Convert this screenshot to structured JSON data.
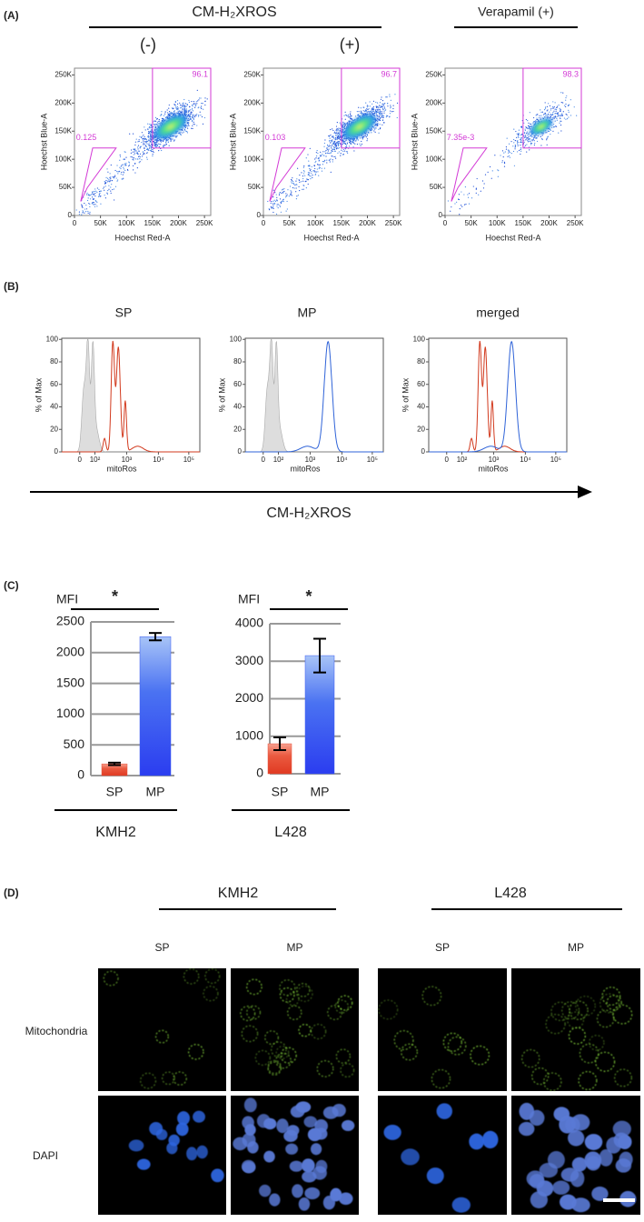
{
  "panel_a": {
    "label": "(A)",
    "treatment": "CM-H₂XROS",
    "verapamil": "Verapamil (+)",
    "conditions": [
      "(-)",
      "(+)"
    ],
    "x_axis_label": "Hoechst Red-A",
    "y_axis_label": "Hoechst Blue-A",
    "ticks": [
      "0",
      "50K",
      "100K",
      "150K",
      "200K",
      "250K"
    ],
    "plots": [
      {
        "mp_gate": "96.1",
        "sp_gate": "0.125"
      },
      {
        "mp_gate": "96.7",
        "sp_gate": "0.103"
      },
      {
        "mp_gate": "98.3",
        "sp_gate": "7.35e-3"
      }
    ]
  },
  "panel_b": {
    "label": "(B)",
    "titles": [
      "SP",
      "MP",
      "merged"
    ],
    "y_axis_label": "% of Max",
    "x_axis_label": "mitoRos",
    "yticks": [
      "0",
      "20",
      "40",
      "60",
      "80",
      "100"
    ],
    "xticks": [
      "0",
      "10²",
      "10³",
      "10⁴",
      "10⁵"
    ],
    "arrow_label": "CM-H₂XROS"
  },
  "panel_c": {
    "label": "(C)"
  },
  "chart_data": [
    {
      "type": "bar",
      "y_label": "MFI",
      "significance": "*",
      "group_label": "KMH2",
      "categories": [
        "SP",
        "MP"
      ],
      "values": [
        190,
        2260
      ],
      "errors": [
        20,
        60
      ],
      "colors": [
        "#e8533c",
        "#3d5cf2"
      ],
      "ylim": [
        0,
        2500
      ],
      "yticks": [
        0,
        500,
        1000,
        1500,
        2000,
        2500
      ],
      "grid": true
    },
    {
      "type": "bar",
      "y_label": "MFI",
      "significance": "*",
      "group_label": "L428",
      "categories": [
        "SP",
        "MP"
      ],
      "values": [
        800,
        3150
      ],
      "errors": [
        170,
        450
      ],
      "colors": [
        "#e8533c",
        "#3d5cf2"
      ],
      "ylim": [
        0,
        4000
      ],
      "yticks": [
        0,
        1000,
        2000,
        3000,
        4000
      ],
      "grid": true
    }
  ],
  "panel_d": {
    "label": "(D)",
    "groups": [
      "KMH2",
      "L428"
    ],
    "columns": [
      "SP",
      "MP",
      "SP",
      "MP"
    ],
    "rows": [
      "Mitochondria",
      "DAPI"
    ]
  }
}
